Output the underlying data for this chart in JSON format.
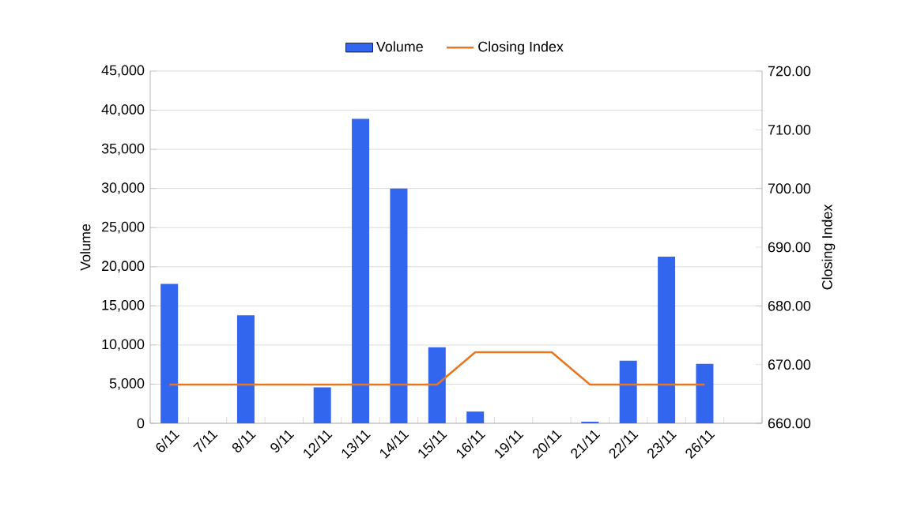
{
  "chart_data": {
    "type": "bar",
    "categories": [
      "6/11",
      "7/11",
      "8/11",
      "9/11",
      "12/11",
      "13/11",
      "14/11",
      "15/11",
      "16/11",
      "19/11",
      "20/11",
      "21/11",
      "22/11",
      "23/11",
      "26/11",
      null
    ],
    "series": [
      {
        "name": "Volume",
        "color": "#3366ee",
        "values": [
          17800,
          null,
          13800,
          null,
          4600,
          38900,
          30000,
          9700,
          1500,
          null,
          null,
          200,
          8000,
          21300,
          7600,
          null
        ]
      },
      {
        "name": "Closing Index",
        "type": "line",
        "axis": "y2",
        "color": "#e87722",
        "values": [
          666.6,
          666.6,
          666.6,
          666.6,
          666.6,
          666.6,
          666.6,
          666.6,
          672.1,
          672.1,
          672.1,
          666.6,
          666.6,
          666.6,
          666.6,
          null
        ]
      }
    ],
    "ylabel": "Volume",
    "y2label": "Closing Index",
    "ylim": [
      0,
      45000
    ],
    "yticks": [
      0,
      {
        "value": 5000,
        "label": "5,000"
      },
      {
        "value": 10000,
        "label": "10,000"
      },
      {
        "value": 15000,
        "label": "15,000"
      },
      {
        "value": 20000,
        "label": "20,000"
      },
      {
        "value": 25000,
        "label": "25,000"
      },
      {
        "value": 30000,
        "label": "30,000"
      },
      {
        "value": 35000,
        "label": "35,000"
      },
      {
        "value": 40000,
        "label": "40,000"
      },
      {
        "value": 45000,
        "label": "45,000"
      }
    ],
    "y2lim": [
      660,
      720
    ],
    "y2ticks": [
      {
        "value": 660,
        "label": "660.00"
      },
      {
        "value": 670,
        "label": "670.00"
      },
      {
        "value": 680,
        "label": "680.00"
      },
      {
        "value": 690,
        "label": "690.00"
      },
      {
        "value": 700,
        "label": "700.00"
      },
      {
        "value": 710,
        "label": "710.00"
      },
      {
        "value": 720,
        "label": "720.00"
      }
    ],
    "grid": "y",
    "legend": "top"
  }
}
